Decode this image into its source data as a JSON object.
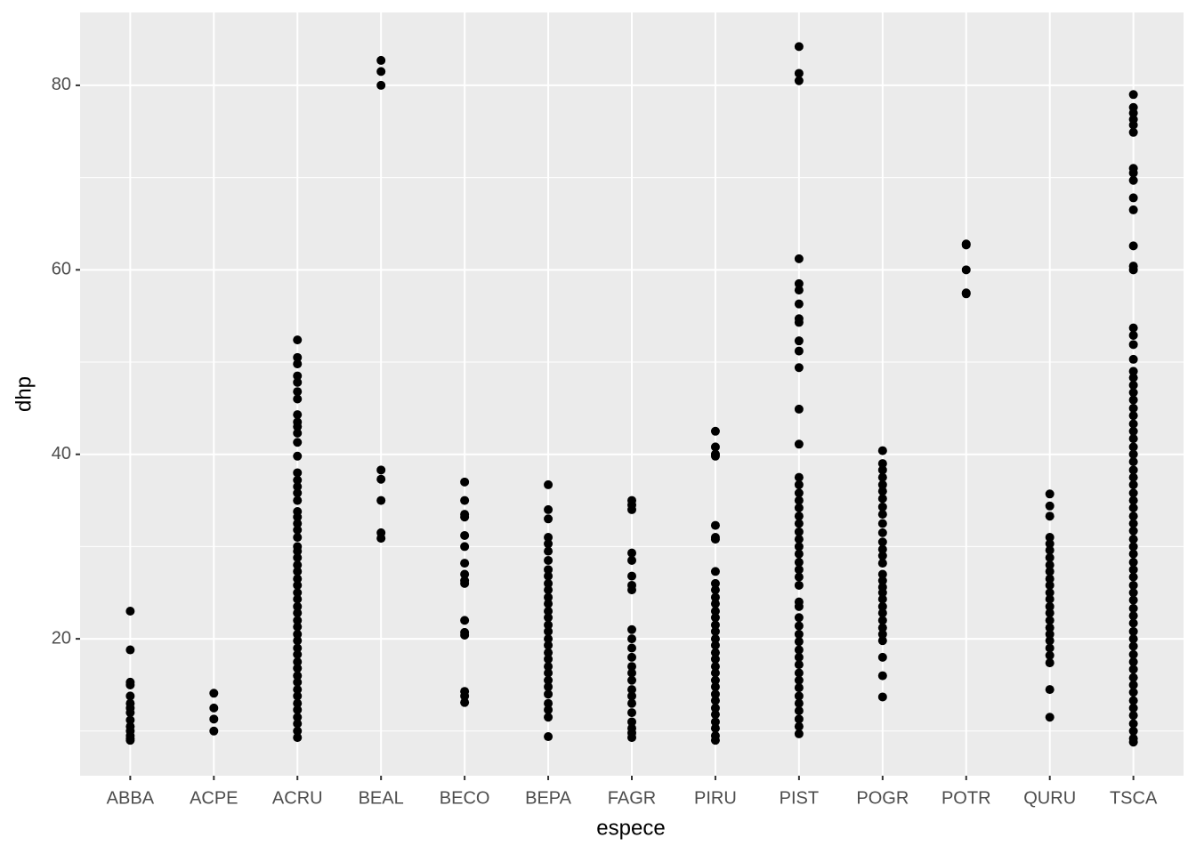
{
  "chart_data": {
    "type": "strip",
    "x_label": "espece",
    "y_label": "dhp",
    "categories": [
      "ABBA",
      "ACPE",
      "ACRU",
      "BEAL",
      "BECO",
      "BEPA",
      "FAGR",
      "PIRU",
      "PIST",
      "POGR",
      "POTR",
      "QURU",
      "TSCA"
    ],
    "values": [
      [
        23,
        18.8,
        15.3,
        15,
        13.8,
        13,
        12.5,
        12,
        11.2,
        10.5,
        10,
        9.5,
        9.2,
        9
      ],
      [
        14.1,
        12.5,
        11.3,
        10
      ],
      [
        52.4,
        50.5,
        49.8,
        48.5,
        47.8,
        46.8,
        46,
        44.3,
        43.5,
        43,
        42.3,
        41.3,
        39.8,
        38,
        37.2,
        36.5,
        35.8,
        35,
        33.8,
        33.2,
        32.5,
        31.8,
        31,
        30,
        29.5,
        28.8,
        28,
        27.3,
        26.5,
        25.8,
        25,
        24.3,
        23.5,
        22.8,
        22,
        21.3,
        20.5,
        19.8,
        19,
        18.3,
        17.5,
        16.8,
        16,
        15.3,
        14.5,
        13.8,
        13,
        12.3,
        11.5,
        10.8,
        10,
        9.3
      ],
      [
        82.7,
        81.5,
        80,
        38.3,
        37.3,
        35,
        31.5,
        30.9
      ],
      [
        37,
        35,
        33.5,
        33.2,
        31.2,
        30,
        28.2,
        27,
        26.3,
        26,
        22,
        20.7,
        20.4,
        14.3,
        13.8,
        13.1
      ],
      [
        36.7,
        34,
        33,
        31,
        30.3,
        29.5,
        28.5,
        27.5,
        26.8,
        26,
        25.3,
        24.5,
        23.8,
        23,
        22.3,
        21.5,
        20.8,
        20,
        19.3,
        18.5,
        17.8,
        17,
        16.3,
        15.5,
        14.8,
        14,
        13,
        12.3,
        11.5,
        9.4
      ],
      [
        35,
        34.5,
        34,
        29.3,
        28.5,
        26.8,
        25.8,
        25.3,
        21,
        20,
        19,
        18,
        17,
        16.3,
        15.5,
        14.5,
        13.8,
        13,
        12,
        11,
        10.3,
        9.8,
        9.3
      ],
      [
        42.5,
        40.8,
        40,
        39.8,
        32.3,
        31,
        30.8,
        27.3,
        26,
        25.3,
        24.5,
        23.8,
        23,
        22.3,
        21.5,
        20.8,
        20,
        19.3,
        18.5,
        17.8,
        17,
        16.3,
        15.5,
        14.8,
        14,
        13.3,
        12.5,
        11.8,
        11,
        10.3,
        9.5,
        9
      ],
      [
        84.2,
        81.3,
        80.5,
        61.2,
        58.5,
        57.8,
        56.3,
        54.7,
        54.3,
        52.3,
        51.2,
        49.4,
        44.9,
        41.1,
        37.5,
        36.7,
        35.8,
        35,
        34.2,
        33.3,
        32.5,
        31.6,
        30.8,
        30,
        29.2,
        28.3,
        27.5,
        26.7,
        25.8,
        24,
        23.5,
        22.3,
        21.4,
        20.5,
        19.7,
        18.8,
        18,
        17.2,
        16.3,
        15.5,
        14.7,
        13.8,
        13,
        12.2,
        11.3,
        10.5,
        9.7
      ],
      [
        40.4,
        39,
        38.3,
        37.5,
        36.7,
        36,
        35.2,
        34.3,
        33.5,
        32.5,
        31.5,
        30.5,
        29.7,
        29,
        28.2,
        27,
        26.3,
        25.6,
        25,
        24.3,
        23.5,
        22.8,
        22,
        21.2,
        20.5,
        19.8,
        18,
        16,
        13.7
      ],
      [
        62.8,
        62.7,
        60,
        57.5,
        57.4
      ],
      [
        35.7,
        34.4,
        33.3,
        31,
        30.3,
        29.6,
        28.8,
        28,
        27.3,
        26.5,
        25.8,
        25,
        24.3,
        23.5,
        22.8,
        22,
        21.2,
        20.5,
        19.8,
        19,
        18.2,
        17.4,
        14.5,
        11.5
      ],
      [
        79,
        77.6,
        77,
        76.3,
        75.7,
        74.9,
        71,
        70.5,
        69.7,
        67.8,
        66.5,
        62.6,
        60.4,
        60,
        53.7,
        52.9,
        51.9,
        50.3,
        49,
        48.3,
        47.5,
        46.7,
        45.9,
        45,
        44.2,
        43.3,
        42.5,
        41.7,
        40.8,
        40,
        39.2,
        38.3,
        37.5,
        36.7,
        35.8,
        35,
        34.2,
        33.3,
        32.5,
        31.7,
        30.8,
        30,
        29.2,
        28.3,
        27.5,
        26.7,
        25.8,
        25,
        24.2,
        23.3,
        22.5,
        21.7,
        20.8,
        20,
        19.2,
        18.3,
        17.5,
        16.7,
        15.8,
        15,
        14.2,
        13.3,
        12.5,
        11.7,
        10.8,
        10,
        9.2,
        8.8
      ]
    ],
    "color": "#000000",
    "ylim": [
      5.16,
      87.9
    ],
    "yticks": [
      20,
      40,
      60,
      80
    ],
    "yminor_ticks": [
      10,
      30,
      50,
      70
    ],
    "grid": true
  }
}
